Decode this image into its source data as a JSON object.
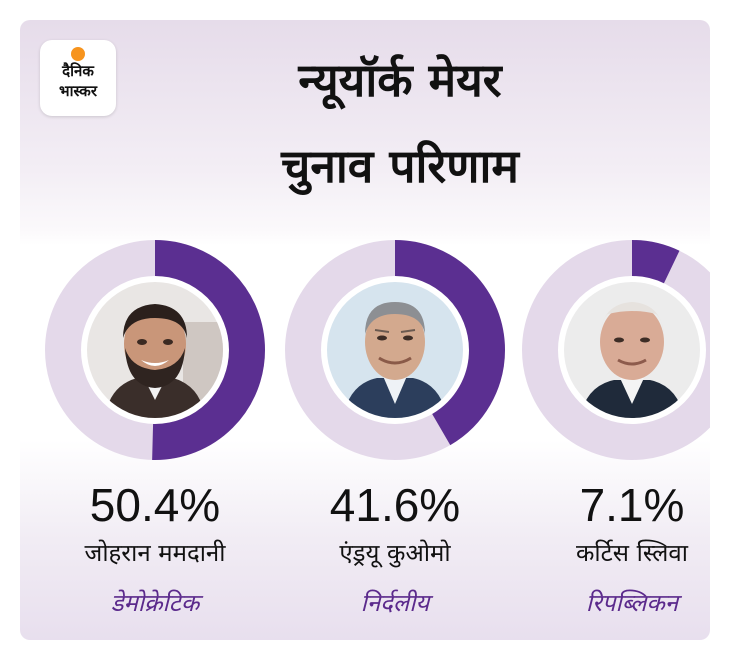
{
  "header": {
    "logo": {
      "line1": "दैनिक",
      "line2": "भास्कर"
    },
    "title_line1": "न्यूयॉर्क मेयर",
    "title_line2": "चुनाव परिणाम"
  },
  "colors": {
    "accent": "#5b2f91",
    "ring_track": "#e4d9ea",
    "party_text": "#5b2a8c",
    "logo_sun": "#f7941d"
  },
  "chart_data": {
    "type": "donut",
    "series": [
      {
        "candidate": "जोहरान ममदानी",
        "party": "डेमोक्रेटिक",
        "value": 50.4,
        "label": "50.4%",
        "portrait": "smiling-man-beard"
      },
      {
        "candidate": "एंड्रयू  कुओमो",
        "party": "निर्दलीय",
        "value": 41.6,
        "label": "41.6%",
        "portrait": "older-man-grey-hair"
      },
      {
        "candidate": "कर्टिस स्लिवा",
        "party": "रिपब्लिकन",
        "value": 7.1,
        "label": "7.1%",
        "portrait": "bald-older-man"
      }
    ]
  }
}
